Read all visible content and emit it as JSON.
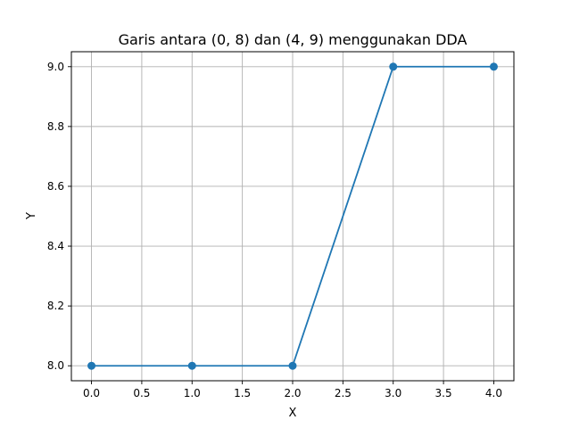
{
  "chart_data": {
    "type": "line",
    "title": "Garis antara (0, 8) dan (4, 9) menggunakan DDA",
    "xlabel": "X",
    "ylabel": "Y",
    "xlim": [
      -0.2,
      4.2
    ],
    "ylim": [
      7.95,
      9.05
    ],
    "xticks": [
      0.0,
      0.5,
      1.0,
      1.5,
      2.0,
      2.5,
      3.0,
      3.5,
      4.0
    ],
    "yticks": [
      8.0,
      8.2,
      8.4,
      8.6,
      8.8,
      9.0
    ],
    "xtick_labels": [
      "0.0",
      "0.5",
      "1.0",
      "1.5",
      "2.0",
      "2.5",
      "3.0",
      "3.5",
      "4.0"
    ],
    "ytick_labels": [
      "8.0",
      "8.2",
      "8.4",
      "8.6",
      "8.8",
      "9.0"
    ],
    "grid": true,
    "series": [
      {
        "x": [
          0,
          1,
          2,
          3,
          4
        ],
        "y": [
          8,
          8,
          8,
          9,
          9
        ],
        "color": "#1f77b4",
        "marker": "circle"
      }
    ]
  }
}
